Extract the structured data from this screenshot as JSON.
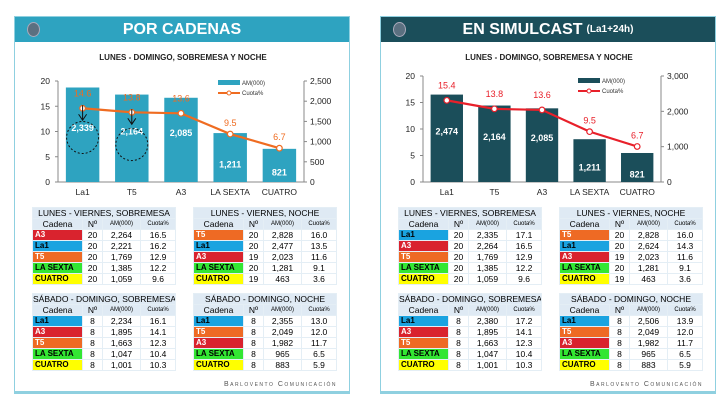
{
  "colors": {
    "La1": "#1aa3e0",
    "A3": "#d9232e",
    "T5": "#ee6a24",
    "LA SEXTA": "#33e633",
    "CUATRO": "#ffff00"
  },
  "panels": [
    {
      "title": "POR CADENAS",
      "subtitle": "",
      "header_color": "#2ea3c0",
      "bar_color": "#2ea3c0",
      "line_color": "#ef6c21",
      "chart_data": {
        "type": "bar+line",
        "title": "LUNES - DOMINGO, SOBREMESA Y NOCHE",
        "categories": [
          "La1",
          "T5",
          "A3",
          "LA SEXTA",
          "CUATRO"
        ],
        "series": [
          {
            "name": "AM(000)",
            "type": "bar",
            "axis": "right",
            "values": [
              2339,
              2164,
              2085,
              1211,
              821
            ]
          },
          {
            "name": "Cuota%",
            "type": "line",
            "axis": "left",
            "values": [
              14.6,
              13.8,
              13.6,
              9.5,
              6.7
            ]
          }
        ],
        "left_axis": {
          "ylim": [
            0,
            20
          ],
          "ticks": [
            "0",
            "5",
            "10",
            "15",
            "20"
          ]
        },
        "right_axis": {
          "ylim": [
            0,
            2500
          ],
          "ticks": [
            "0",
            "500",
            "1,000",
            "1,500",
            "2,000",
            "2,500"
          ]
        },
        "bar_labels": [
          "2,339",
          "2,164",
          "2,085",
          "1,211",
          "821"
        ],
        "legend": "top-right",
        "annotations": "dashed circles with arrows on La1 and T5"
      },
      "tables": [
        {
          "title": "LUNES - VIERNES, SOBREMESA",
          "rows": [
            [
              "A3",
              "20",
              "2,264",
              "16.5"
            ],
            [
              "La1",
              "20",
              "2,221",
              "16.2"
            ],
            [
              "T5",
              "20",
              "1,769",
              "12.9"
            ],
            [
              "LA SEXTA",
              "20",
              "1,385",
              "12.2"
            ],
            [
              "CUATRO",
              "20",
              "1,059",
              "9.6"
            ]
          ]
        },
        {
          "title": "LUNES - VIERNES, NOCHE",
          "rows": [
            [
              "T5",
              "20",
              "2,828",
              "16.0"
            ],
            [
              "La1",
              "20",
              "2,477",
              "13.5"
            ],
            [
              "A3",
              "19",
              "2,023",
              "11.6"
            ],
            [
              "LA SEXTA",
              "20",
              "1,281",
              "9.1"
            ],
            [
              "CUATRO",
              "19",
              "463",
              "3.6"
            ]
          ]
        },
        {
          "title": "SÁBADO - DOMINGO, SOBREMESA",
          "rows": [
            [
              "La1",
              "8",
              "2,234",
              "16.1"
            ],
            [
              "A3",
              "8",
              "1,895",
              "14.1"
            ],
            [
              "T5",
              "8",
              "1,663",
              "12.3"
            ],
            [
              "LA SEXTA",
              "8",
              "1,047",
              "10.4"
            ],
            [
              "CUATRO",
              "8",
              "1,001",
              "10.3"
            ]
          ]
        },
        {
          "title": "SÁBADO - DOMINGO, NOCHE",
          "rows": [
            [
              "La1",
              "8",
              "2,355",
              "13.0"
            ],
            [
              "T5",
              "8",
              "2,049",
              "12.0"
            ],
            [
              "A3",
              "8",
              "1,982",
              "11.7"
            ],
            [
              "LA SEXTA",
              "8",
              "965",
              "6.5"
            ],
            [
              "CUATRO",
              "8",
              "883",
              "5.9"
            ]
          ]
        }
      ],
      "footer": "Barlovento Comunicación"
    },
    {
      "title": "EN SIMULCAST",
      "subtitle": "(La1+24h)",
      "header_color": "#1b4e5a",
      "bar_color": "#1b4e5a",
      "line_color": "#e8202a",
      "chart_data": {
        "type": "bar+line",
        "title": "LUNES - DOMINGO, SOBREMESA Y NOCHE",
        "categories": [
          "La1",
          "T5",
          "A3",
          "LA SEXTA",
          "CUATRO"
        ],
        "series": [
          {
            "name": "AM(000)",
            "type": "bar",
            "axis": "right",
            "values": [
              2474,
              2164,
              2085,
              1211,
              821
            ]
          },
          {
            "name": "Cuota%",
            "type": "line",
            "axis": "left",
            "values": [
              15.4,
              13.8,
              13.6,
              9.5,
              6.7
            ]
          }
        ],
        "left_axis": {
          "ylim": [
            0,
            20
          ],
          "ticks": [
            "0",
            "5",
            "10",
            "15",
            "20"
          ]
        },
        "right_axis": {
          "ylim": [
            0,
            3000
          ],
          "ticks": [
            "0",
            "1,000",
            "2,000",
            "3,000"
          ]
        },
        "bar_labels": [
          "2,474",
          "2,164",
          "2,085",
          "1,211",
          "821"
        ],
        "legend": "top-right"
      },
      "tables": [
        {
          "title": "LUNES - VIERNES, SOBREMESA",
          "rows": [
            [
              "La1",
              "20",
              "2,335",
              "17.1"
            ],
            [
              "A3",
              "20",
              "2,264",
              "16.5"
            ],
            [
              "T5",
              "20",
              "1,769",
              "12.9"
            ],
            [
              "LA SEXTA",
              "20",
              "1,385",
              "12.2"
            ],
            [
              "CUATRO",
              "20",
              "1,059",
              "9.6"
            ]
          ]
        },
        {
          "title": "LUNES - VIERNES, NOCHE",
          "rows": [
            [
              "T5",
              "20",
              "2,828",
              "16.0"
            ],
            [
              "La1",
              "20",
              "2,624",
              "14.3"
            ],
            [
              "A3",
              "19",
              "2,023",
              "11.6"
            ],
            [
              "LA SEXTA",
              "20",
              "1,281",
              "9.1"
            ],
            [
              "CUATRO",
              "19",
              "463",
              "3.6"
            ]
          ]
        },
        {
          "title": "SÁBADO - DOMINGO, SOBREMESA",
          "rows": [
            [
              "La1",
              "8",
              "2,380",
              "17.2"
            ],
            [
              "A3",
              "8",
              "1,895",
              "14.1"
            ],
            [
              "T5",
              "8",
              "1,663",
              "12.3"
            ],
            [
              "LA SEXTA",
              "8",
              "1,047",
              "10.4"
            ],
            [
              "CUATRO",
              "8",
              "1,001",
              "10.3"
            ]
          ]
        },
        {
          "title": "SÁBADO - DOMINGO, NOCHE",
          "rows": [
            [
              "La1",
              "8",
              "2,506",
              "13.9"
            ],
            [
              "T5",
              "8",
              "2,049",
              "12.0"
            ],
            [
              "A3",
              "8",
              "1,982",
              "11.7"
            ],
            [
              "LA SEXTA",
              "8",
              "965",
              "6.5"
            ],
            [
              "CUATRO",
              "8",
              "883",
              "5.9"
            ]
          ]
        }
      ],
      "footer": "Barlovento Comunicación"
    }
  ],
  "table_headers": [
    "Cadena",
    "Nº",
    "AM(000)",
    "Cuota%"
  ]
}
